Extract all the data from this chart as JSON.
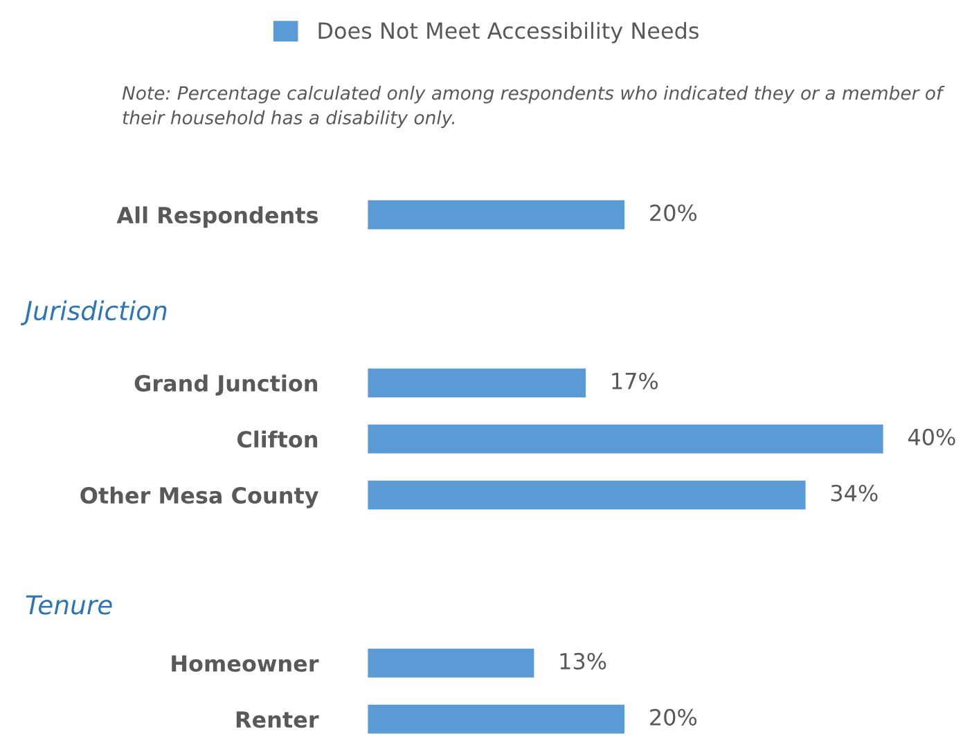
{
  "chart_data": {
    "type": "bar",
    "orientation": "horizontal",
    "subtitle": "Note: Percentage calculated only among respondents who indicated they or a member of their household has a disability only.",
    "categories": [
      "All Respondents",
      null,
      null,
      "Grand Junction",
      "Clifton",
      "Other Mesa County",
      null,
      null,
      "Homeowner",
      "Renter"
    ],
    "series": [
      {
        "name": "Does Not Meet Accessibility Needs",
        "color": "#5b9bd5",
        "values": [
          20,
          null,
          null,
          17,
          40,
          34,
          null,
          null,
          13,
          20
        ],
        "value_labels": [
          "20%",
          null,
          null,
          "17%",
          "40%",
          "34%",
          null,
          null,
          "13%",
          "20%"
        ]
      }
    ],
    "annotations": [
      "Jurisdiction",
      "Tenure"
    ],
    "legend": "top",
    "grid": false
  }
}
